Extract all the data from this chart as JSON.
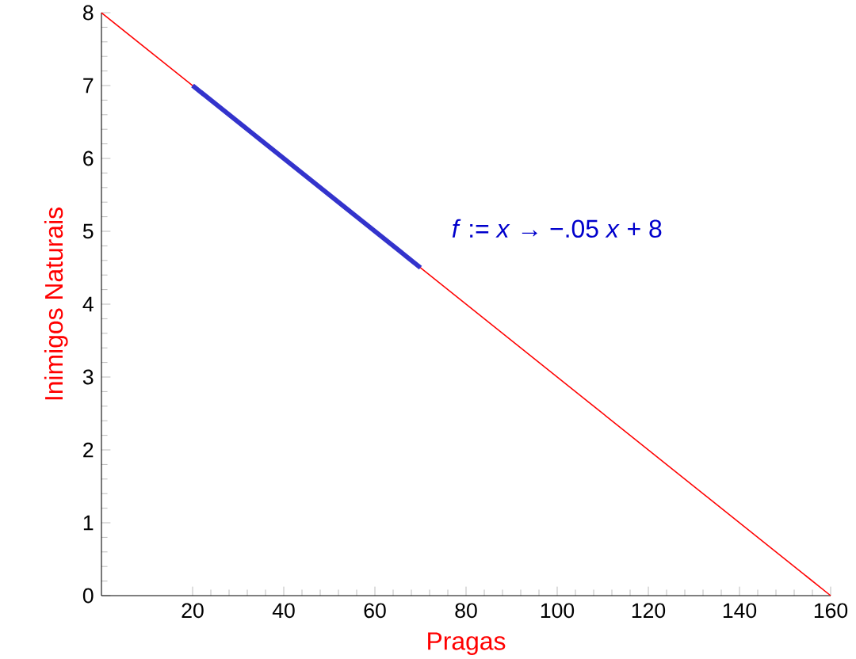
{
  "chart_data": {
    "type": "line",
    "xlabel": "Pragas",
    "ylabel": "Inimigos Naturais",
    "annotations": [
      "*f* := *x* → −.05 *x* + 8"
    ],
    "series": [
      {
        "color": "#ff0000",
        "x": [
          0,
          160
        ],
        "values": [
          8,
          0
        ]
      },
      {
        "color": "#3333cc",
        "x": [
          20,
          70
        ],
        "values": [
          7,
          4.5
        ]
      }
    ],
    "xlim": [
      0,
      160
    ],
    "xticks": [
      20,
      40,
      60,
      80,
      100,
      120,
      140,
      160
    ],
    "ylim": [
      0,
      8
    ],
    "yticks": [
      0,
      1,
      2,
      3,
      4,
      5,
      6,
      7,
      8
    ],
    "grid": false,
    "marker": "none",
    "line_style": "solid"
  }
}
